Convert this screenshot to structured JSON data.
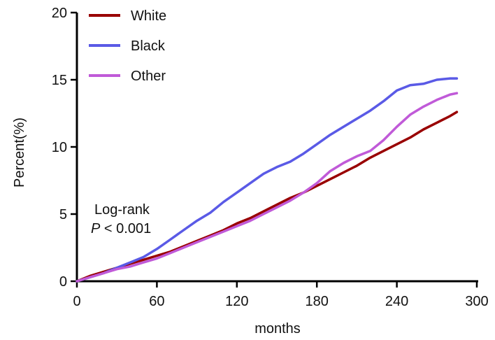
{
  "chart_data": {
    "type": "line",
    "xlabel": "months",
    "ylabel": "Percent(%)",
    "xlim": [
      0,
      300
    ],
    "ylim": [
      0,
      20
    ],
    "xticks": [
      0,
      60,
      120,
      180,
      240,
      300
    ],
    "yticks": [
      0,
      5,
      10,
      15,
      20
    ],
    "grid": false,
    "legend_position": "top-left",
    "annotation": {
      "line1": "Log-rank",
      "p_symbol": "P",
      "p_rest": " < 0.001"
    },
    "series": [
      {
        "name": "White",
        "color": "#990000",
        "x": [
          0,
          10,
          20,
          30,
          40,
          50,
          60,
          70,
          80,
          90,
          100,
          110,
          120,
          130,
          140,
          150,
          160,
          170,
          180,
          190,
          200,
          210,
          220,
          230,
          240,
          250,
          260,
          270,
          280,
          285
        ],
        "y": [
          0,
          0.4,
          0.7,
          1.0,
          1.3,
          1.6,
          1.9,
          2.2,
          2.6,
          3.0,
          3.4,
          3.8,
          4.3,
          4.7,
          5.2,
          5.7,
          6.2,
          6.6,
          7.1,
          7.6,
          8.1,
          8.6,
          9.2,
          9.7,
          10.2,
          10.7,
          11.3,
          11.8,
          12.3,
          12.6
        ]
      },
      {
        "name": "Black",
        "color": "#5a5ae6",
        "x": [
          0,
          10,
          20,
          30,
          40,
          50,
          60,
          70,
          80,
          90,
          100,
          110,
          120,
          130,
          140,
          150,
          160,
          170,
          180,
          190,
          200,
          210,
          220,
          230,
          240,
          250,
          260,
          270,
          280,
          285
        ],
        "y": [
          0,
          0.3,
          0.6,
          1.0,
          1.4,
          1.8,
          2.4,
          3.1,
          3.8,
          4.5,
          5.1,
          5.9,
          6.6,
          7.3,
          8.0,
          8.5,
          8.9,
          9.5,
          10.2,
          10.9,
          11.5,
          12.1,
          12.7,
          13.4,
          14.2,
          14.6,
          14.7,
          15.0,
          15.1,
          15.1
        ]
      },
      {
        "name": "Other",
        "color": "#c05ad8",
        "x": [
          0,
          10,
          20,
          30,
          40,
          50,
          60,
          70,
          80,
          90,
          100,
          110,
          120,
          130,
          140,
          150,
          160,
          170,
          180,
          190,
          200,
          210,
          220,
          230,
          240,
          250,
          260,
          270,
          280,
          285
        ],
        "y": [
          0,
          0.3,
          0.6,
          0.9,
          1.1,
          1.4,
          1.7,
          2.1,
          2.5,
          2.9,
          3.3,
          3.7,
          4.1,
          4.5,
          5.0,
          5.5,
          6.0,
          6.6,
          7.3,
          8.2,
          8.8,
          9.3,
          9.7,
          10.5,
          11.5,
          12.4,
          13.0,
          13.5,
          13.9,
          14.0
        ]
      }
    ]
  }
}
